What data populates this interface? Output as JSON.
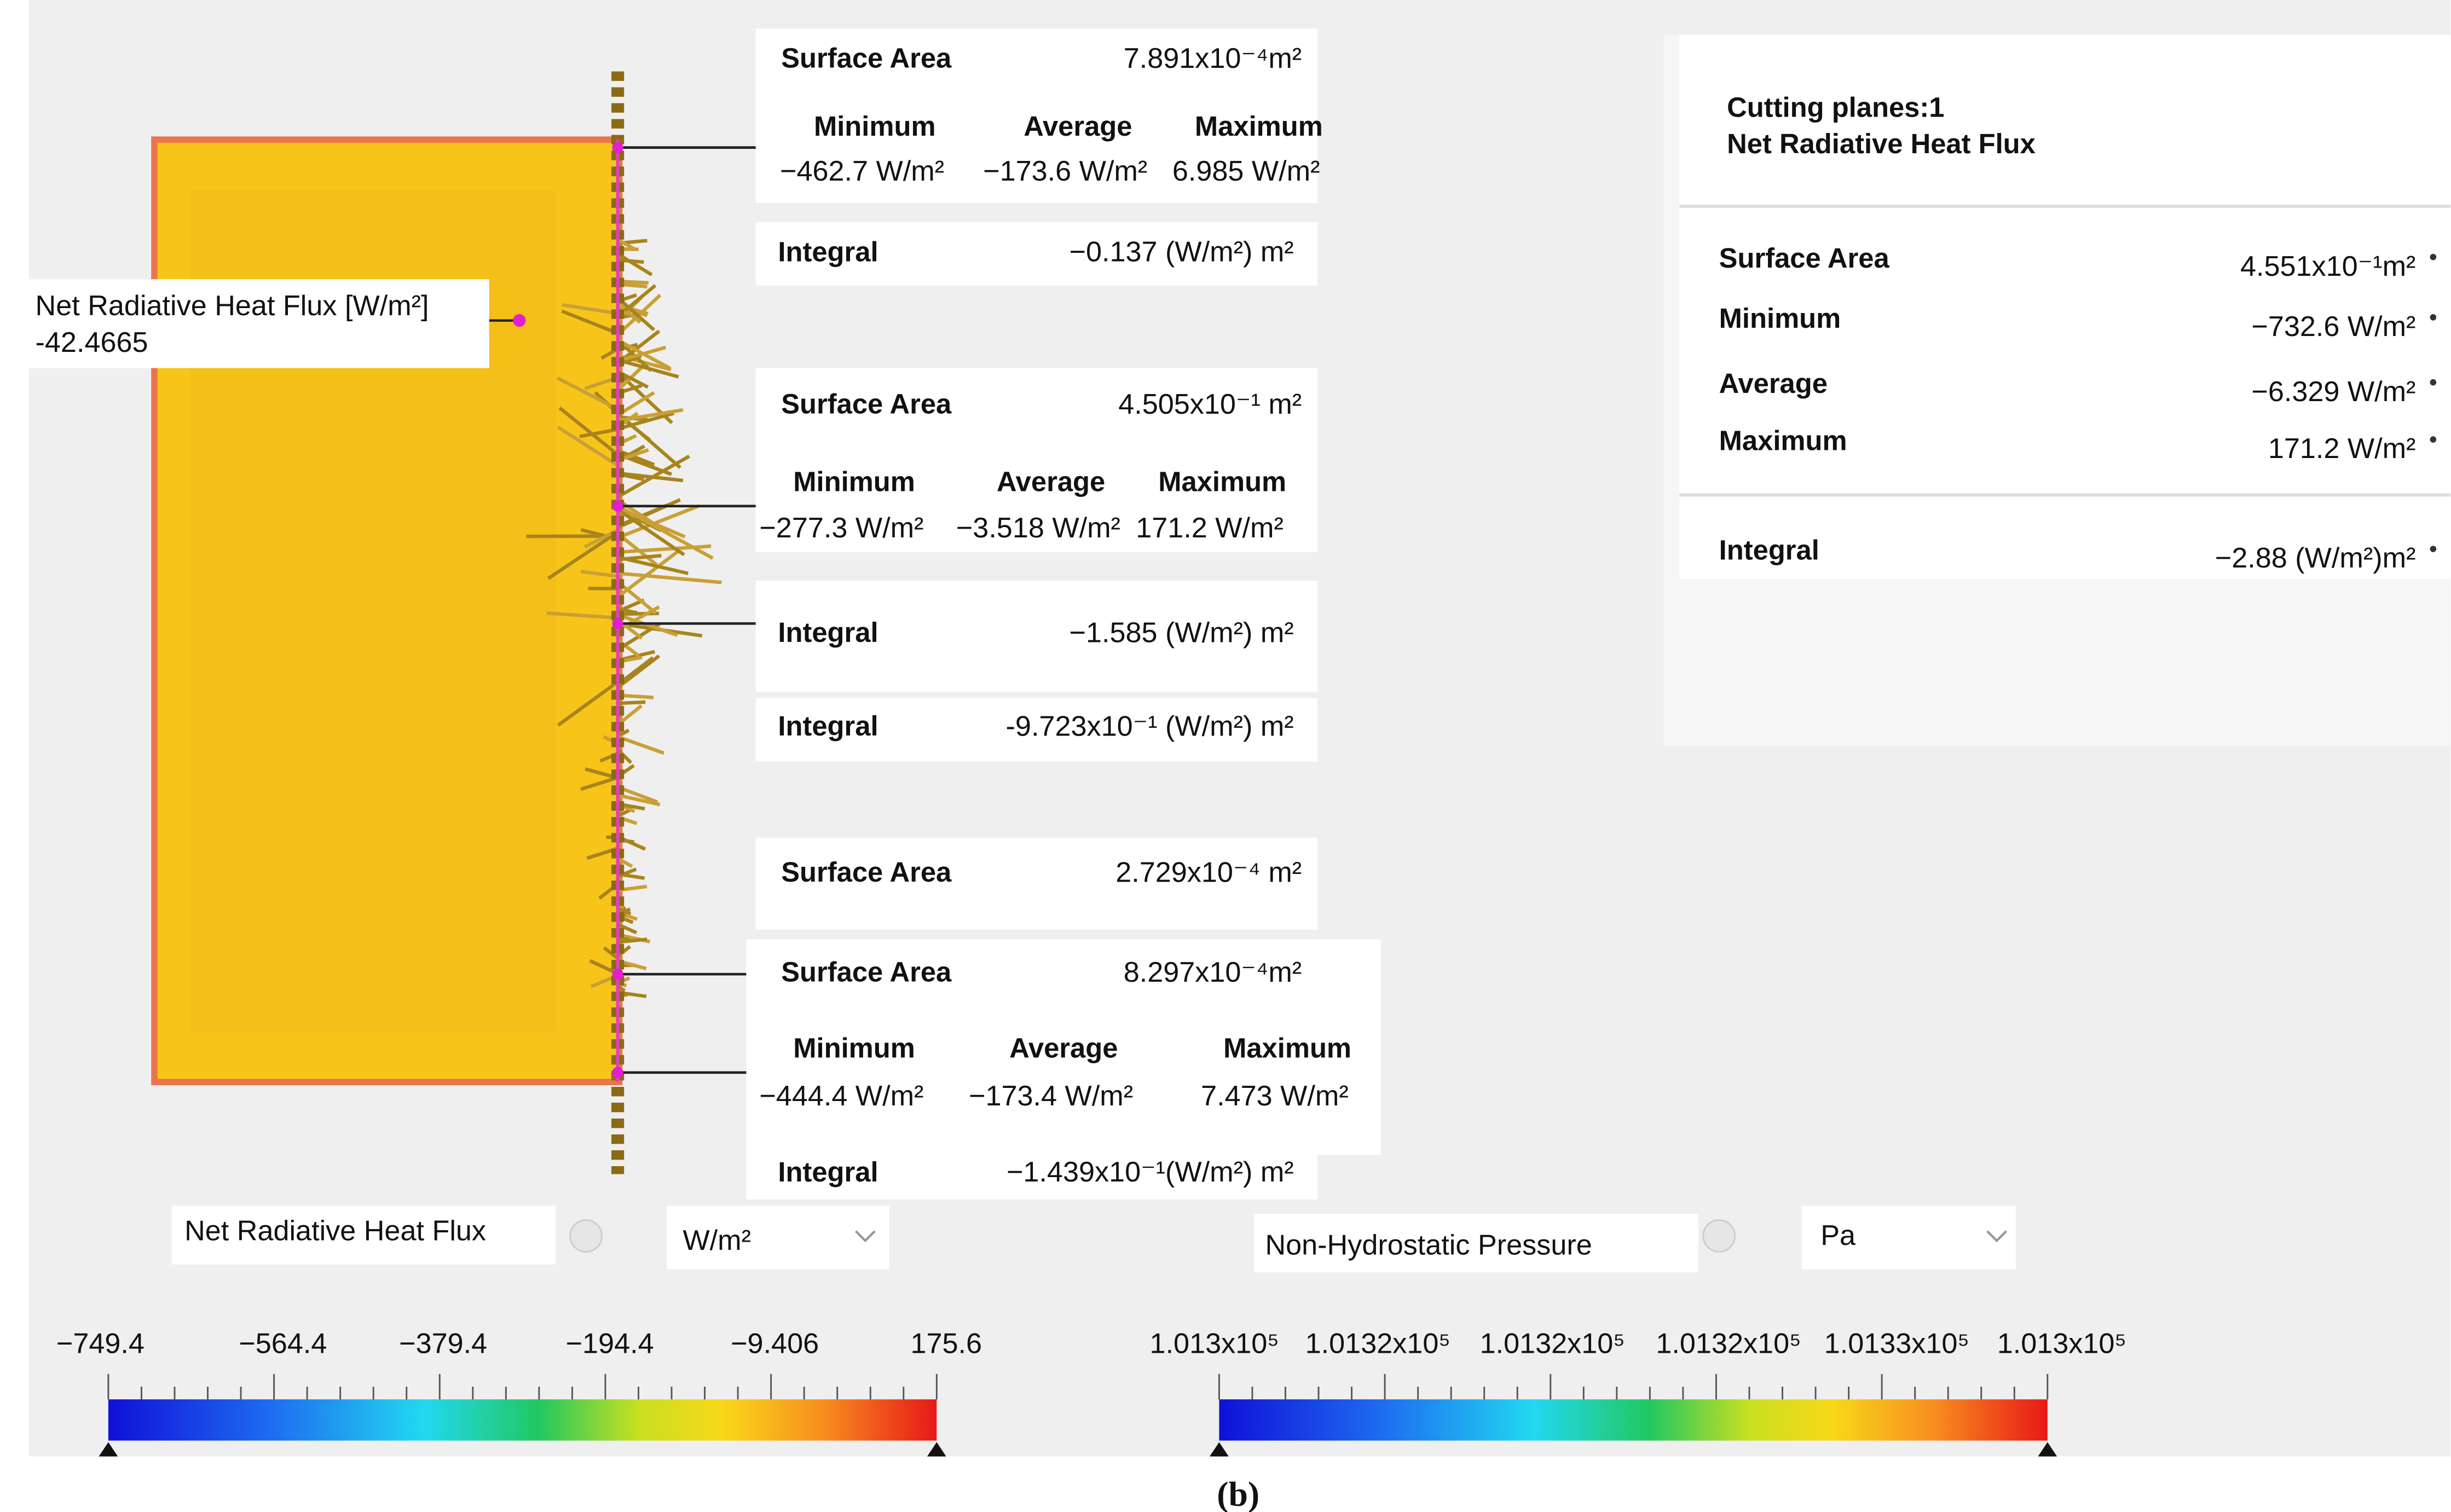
{
  "probe_label": {
    "title": "Net Radiative Heat Flux [W/m²]",
    "value": "-42.4665"
  },
  "probes": [
    {
      "surface_area": {
        "label": "Surface Area",
        "value": "7.891x10⁻⁴m²"
      },
      "stats": {
        "labels": [
          "Minimum",
          "Average",
          "Maximum"
        ],
        "values": [
          "−462.7 W/m²",
          "−173.6 W/m²",
          "6.985 W/m²"
        ]
      },
      "integral": {
        "label": "Integral",
        "value": "−0.137 (W/m²) m²"
      }
    },
    {
      "surface_area": {
        "label": "Surface Area",
        "value": "4.505x10⁻¹ m²"
      },
      "stats": {
        "labels": [
          "Minimum",
          "Average",
          "Maximum"
        ],
        "values": [
          "−277.3 W/m²",
          "−3.518 W/m²",
          "171.2 W/m²"
        ]
      },
      "integral": {
        "label": "Integral",
        "value": "−1.585 (W/m²) m²"
      }
    },
    {
      "integral": {
        "label": "Integral",
        "value": "-9.723x10⁻¹ (W/m²) m²"
      }
    },
    {
      "surface_area": {
        "label": "Surface Area",
        "value": "2.729x10⁻⁴ m²"
      }
    },
    {
      "surface_area": {
        "label": "Surface Area",
        "value": "8.297x10⁻⁴m²"
      },
      "stats": {
        "labels": [
          "Minimum",
          "Average",
          "Maximum"
        ],
        "values": [
          "−444.4 W/m²",
          "−173.4 W/m²",
          "7.473 W/m²"
        ]
      },
      "integral": {
        "label": "Integral",
        "value": "−1.439x10⁻¹(W/m²) m²"
      }
    }
  ],
  "summary_panel": {
    "title_lines": [
      "Cutting planes:1",
      "Net Radiative Heat Flux"
    ],
    "rows": [
      {
        "label": "Surface Area",
        "value": "4.551x10⁻¹m²"
      },
      {
        "label": "Minimum",
        "value": "−732.6 W/m²"
      },
      {
        "label": "Average",
        "value": "−6.329 W/m²"
      },
      {
        "label": "Maximum",
        "value": "171.2 W/m²"
      },
      {
        "label": "Integral",
        "value": "−2.88 (W/m²)m²"
      }
    ]
  },
  "colorbars": [
    {
      "quantity": "Net Radiative Heat Flux",
      "unit": "W/m²",
      "tick_labels": [
        "−749.4",
        "−564.4",
        "−379.4",
        "−194.4",
        "−9.406",
        "175.6"
      ]
    },
    {
      "quantity": "Non-Hydrostatic Pressure",
      "unit": "Pa",
      "tick_labels": [
        "1.013x10⁵",
        "1.0132x10⁵",
        "1.0132x10⁵",
        "1.0132x10⁵",
        "1.0133x10⁵",
        "1.013x10⁵"
      ]
    }
  ],
  "caption": "(b)"
}
